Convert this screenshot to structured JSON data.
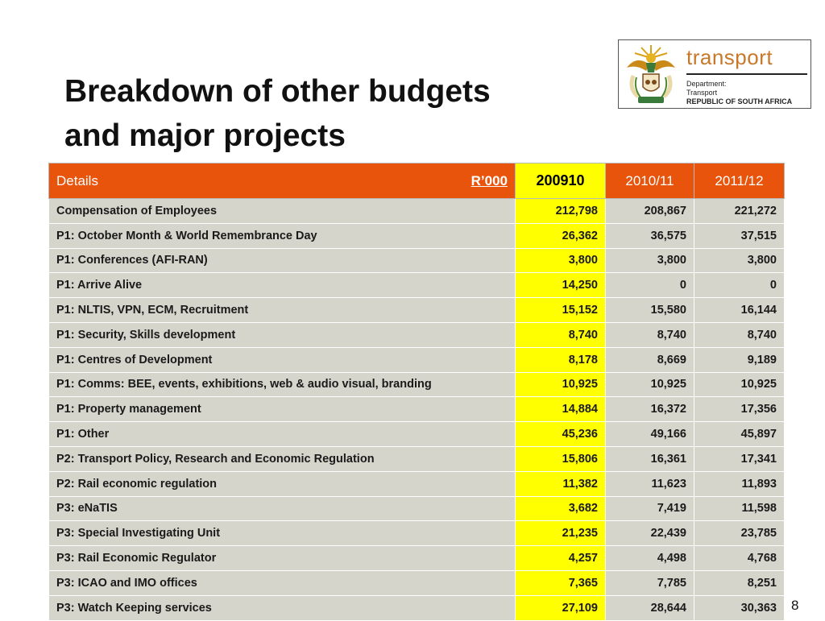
{
  "slide": {
    "title_lines": [
      "Breakdown of other budgets",
      "and major projects"
    ],
    "page_number": "8"
  },
  "logo": {
    "brand": "transport",
    "dept_line1": "Department:",
    "dept_line2": "Transport",
    "dept_line3": "REPUBLIC OF SOUTH AFRICA",
    "crest_icon": "south-africa-coat-of-arms-icon",
    "brand_color": "#c8782a"
  },
  "colors": {
    "header_bg": "#e8540c",
    "highlight_column": "#ffff00",
    "row_bg": "#d5d5cc"
  },
  "table": {
    "headers": {
      "details": "Details",
      "unit": "R’000",
      "y1": "200910",
      "y2": "2010/11",
      "y3": "2011/12"
    },
    "rows": [
      [
        "Compensation of Employees",
        "212,798",
        "208,867",
        "221,272"
      ],
      [
        "P1: October Month & World Remembrance Day",
        "26,362",
        "36,575",
        "37,515"
      ],
      [
        "P1: Conferences (AFI-RAN)",
        "3,800",
        "3,800",
        "3,800"
      ],
      [
        "P1: Arrive Alive",
        "14,250",
        "0",
        "0"
      ],
      [
        "P1: NLTIS, VPN, ECM, Recruitment",
        "15,152",
        "15,580",
        "16,144"
      ],
      [
        "P1: Security, Skills development",
        "8,740",
        "8,740",
        "8,740"
      ],
      [
        "P1: Centres of Development",
        "8,178",
        "8,669",
        "9,189"
      ],
      [
        "P1: Comms: BEE, events, exhibitions, web & audio visual, branding",
        "10,925",
        "10,925",
        "10,925"
      ],
      [
        "P1: Property management",
        "14,884",
        "16,372",
        "17,356"
      ],
      [
        "P1: Other",
        "45,236",
        "49,166",
        "45,897"
      ],
      [
        "P2: Transport Policy, Research and Economic Regulation",
        "15,806",
        "16,361",
        "17,341"
      ],
      [
        "P2: Rail economic regulation",
        "11,382",
        "11,623",
        "11,893"
      ],
      [
        "P3: eNaTIS",
        "3,682",
        "7,419",
        "11,598"
      ],
      [
        "P3: Special Investigating Unit",
        "21,235",
        "22,439",
        "23,785"
      ],
      [
        "P3: Rail Economic Regulator",
        "4,257",
        "4,498",
        "4,768"
      ],
      [
        "P3: ICAO and IMO offices",
        "7,365",
        "7,785",
        "8,251"
      ],
      [
        "P3: Watch Keeping services",
        "27,109",
        "28,644",
        "30,363"
      ]
    ]
  }
}
